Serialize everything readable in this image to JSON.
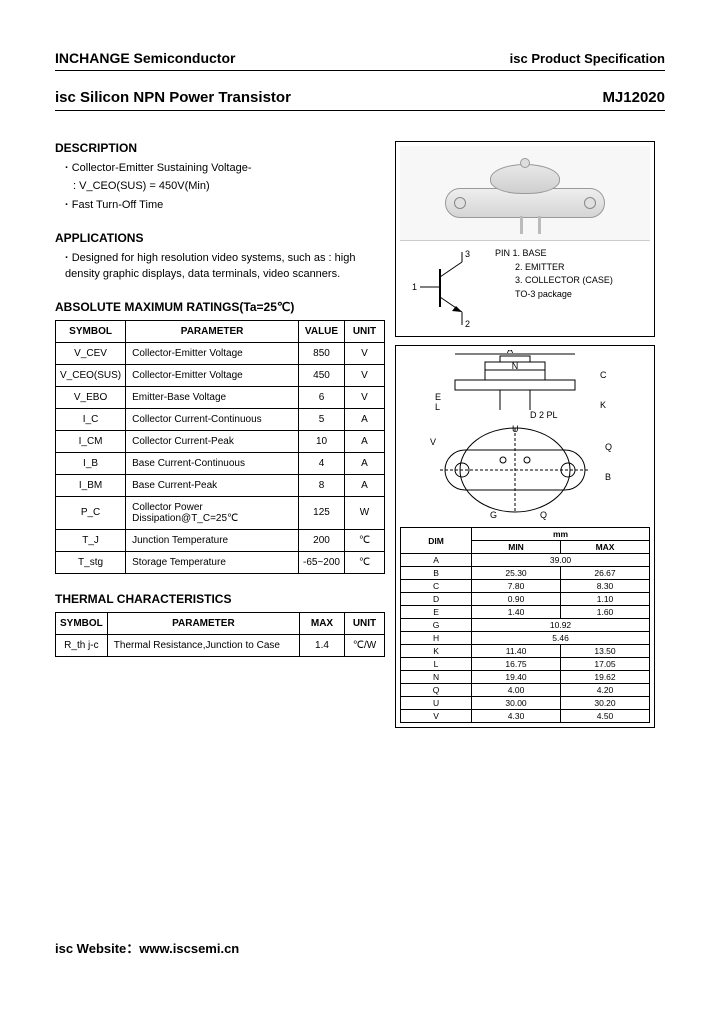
{
  "header": {
    "company": "INCHANGE Semiconductor",
    "spec": "isc Product Specification"
  },
  "title": {
    "product": "isc Silicon NPN Power Transistor",
    "part": "MJ12020"
  },
  "description": {
    "heading": "DESCRIPTION",
    "line1": "Collector-Emitter Sustaining Voltage-",
    "line1b": ": V_CEO(SUS) = 450V(Min)",
    "line2": "Fast Turn-Off Time"
  },
  "applications": {
    "heading": "APPLICATIONS",
    "text": "Designed for high resolution video systems, such as : high density graphic displays, data terminals, video scanners."
  },
  "ratings": {
    "heading": "ABSOLUTE MAXIMUM RATINGS(Ta=25℃)",
    "cols": [
      "SYMBOL",
      "PARAMETER",
      "VALUE",
      "UNIT"
    ],
    "rows": [
      [
        "V_CEV",
        "Collector-Emitter Voltage",
        "850",
        "V"
      ],
      [
        "V_CEO(SUS)",
        "Collector-Emitter Voltage",
        "450",
        "V"
      ],
      [
        "V_EBO",
        "Emitter-Base Voltage",
        "6",
        "V"
      ],
      [
        "I_C",
        "Collector Current-Continuous",
        "5",
        "A"
      ],
      [
        "I_CM",
        "Collector Current-Peak",
        "10",
        "A"
      ],
      [
        "I_B",
        "Base Current-Continuous",
        "4",
        "A"
      ],
      [
        "I_BM",
        "Base Current-Peak",
        "8",
        "A"
      ],
      [
        "P_C",
        "Collector Power Dissipation@T_C=25℃",
        "125",
        "W"
      ],
      [
        "T_J",
        "Junction Temperature",
        "200",
        "℃"
      ],
      [
        "T_stg",
        "Storage Temperature",
        "-65~200",
        "℃"
      ]
    ]
  },
  "thermal": {
    "heading": "THERMAL CHARACTERISTICS",
    "cols": [
      "SYMBOL",
      "PARAMETER",
      "MAX",
      "UNIT"
    ],
    "rows": [
      [
        "R_th j-c",
        "Thermal Resistance,Junction to Case",
        "1.4",
        "℃/W"
      ]
    ]
  },
  "pins": {
    "heading": "PIN",
    "p1": "1. BASE",
    "p2": "2. EMITTER",
    "p3": "3. COLLECTOR (CASE)",
    "pkg": "TO-3 package",
    "n1": "1",
    "n2": "2",
    "n3": "3"
  },
  "mech": {
    "labels": {
      "A": "A",
      "N": "N",
      "C": "C",
      "E": "E",
      "L": "L",
      "K": "K",
      "U": "U",
      "D": "D 2 PL",
      "V": "V",
      "Q": "Q",
      "B": "B",
      "G": "G"
    }
  },
  "dims": {
    "head_dim": "DIM",
    "head_mm": "mm",
    "head_min": "MIN",
    "head_max": "MAX",
    "rows": [
      {
        "d": "A",
        "min": "39.00",
        "max": ""
      },
      {
        "d": "B",
        "min": "25.30",
        "max": "26.67"
      },
      {
        "d": "C",
        "min": "7.80",
        "max": "8.30"
      },
      {
        "d": "D",
        "min": "0.90",
        "max": "1.10"
      },
      {
        "d": "E",
        "min": "1.40",
        "max": "1.60"
      },
      {
        "d": "G",
        "min": "10.92",
        "max": ""
      },
      {
        "d": "H",
        "min": "5.46",
        "max": ""
      },
      {
        "d": "K",
        "min": "11.40",
        "max": "13.50"
      },
      {
        "d": "L",
        "min": "16.75",
        "max": "17.05"
      },
      {
        "d": "N",
        "min": "19.40",
        "max": "19.62"
      },
      {
        "d": "Q",
        "min": "4.00",
        "max": "4.20"
      },
      {
        "d": "U",
        "min": "30.00",
        "max": "30.20"
      },
      {
        "d": "V",
        "min": "4.30",
        "max": "4.50"
      }
    ]
  },
  "footer": {
    "label": "isc Website：",
    "url": "www.iscsemi.cn"
  }
}
